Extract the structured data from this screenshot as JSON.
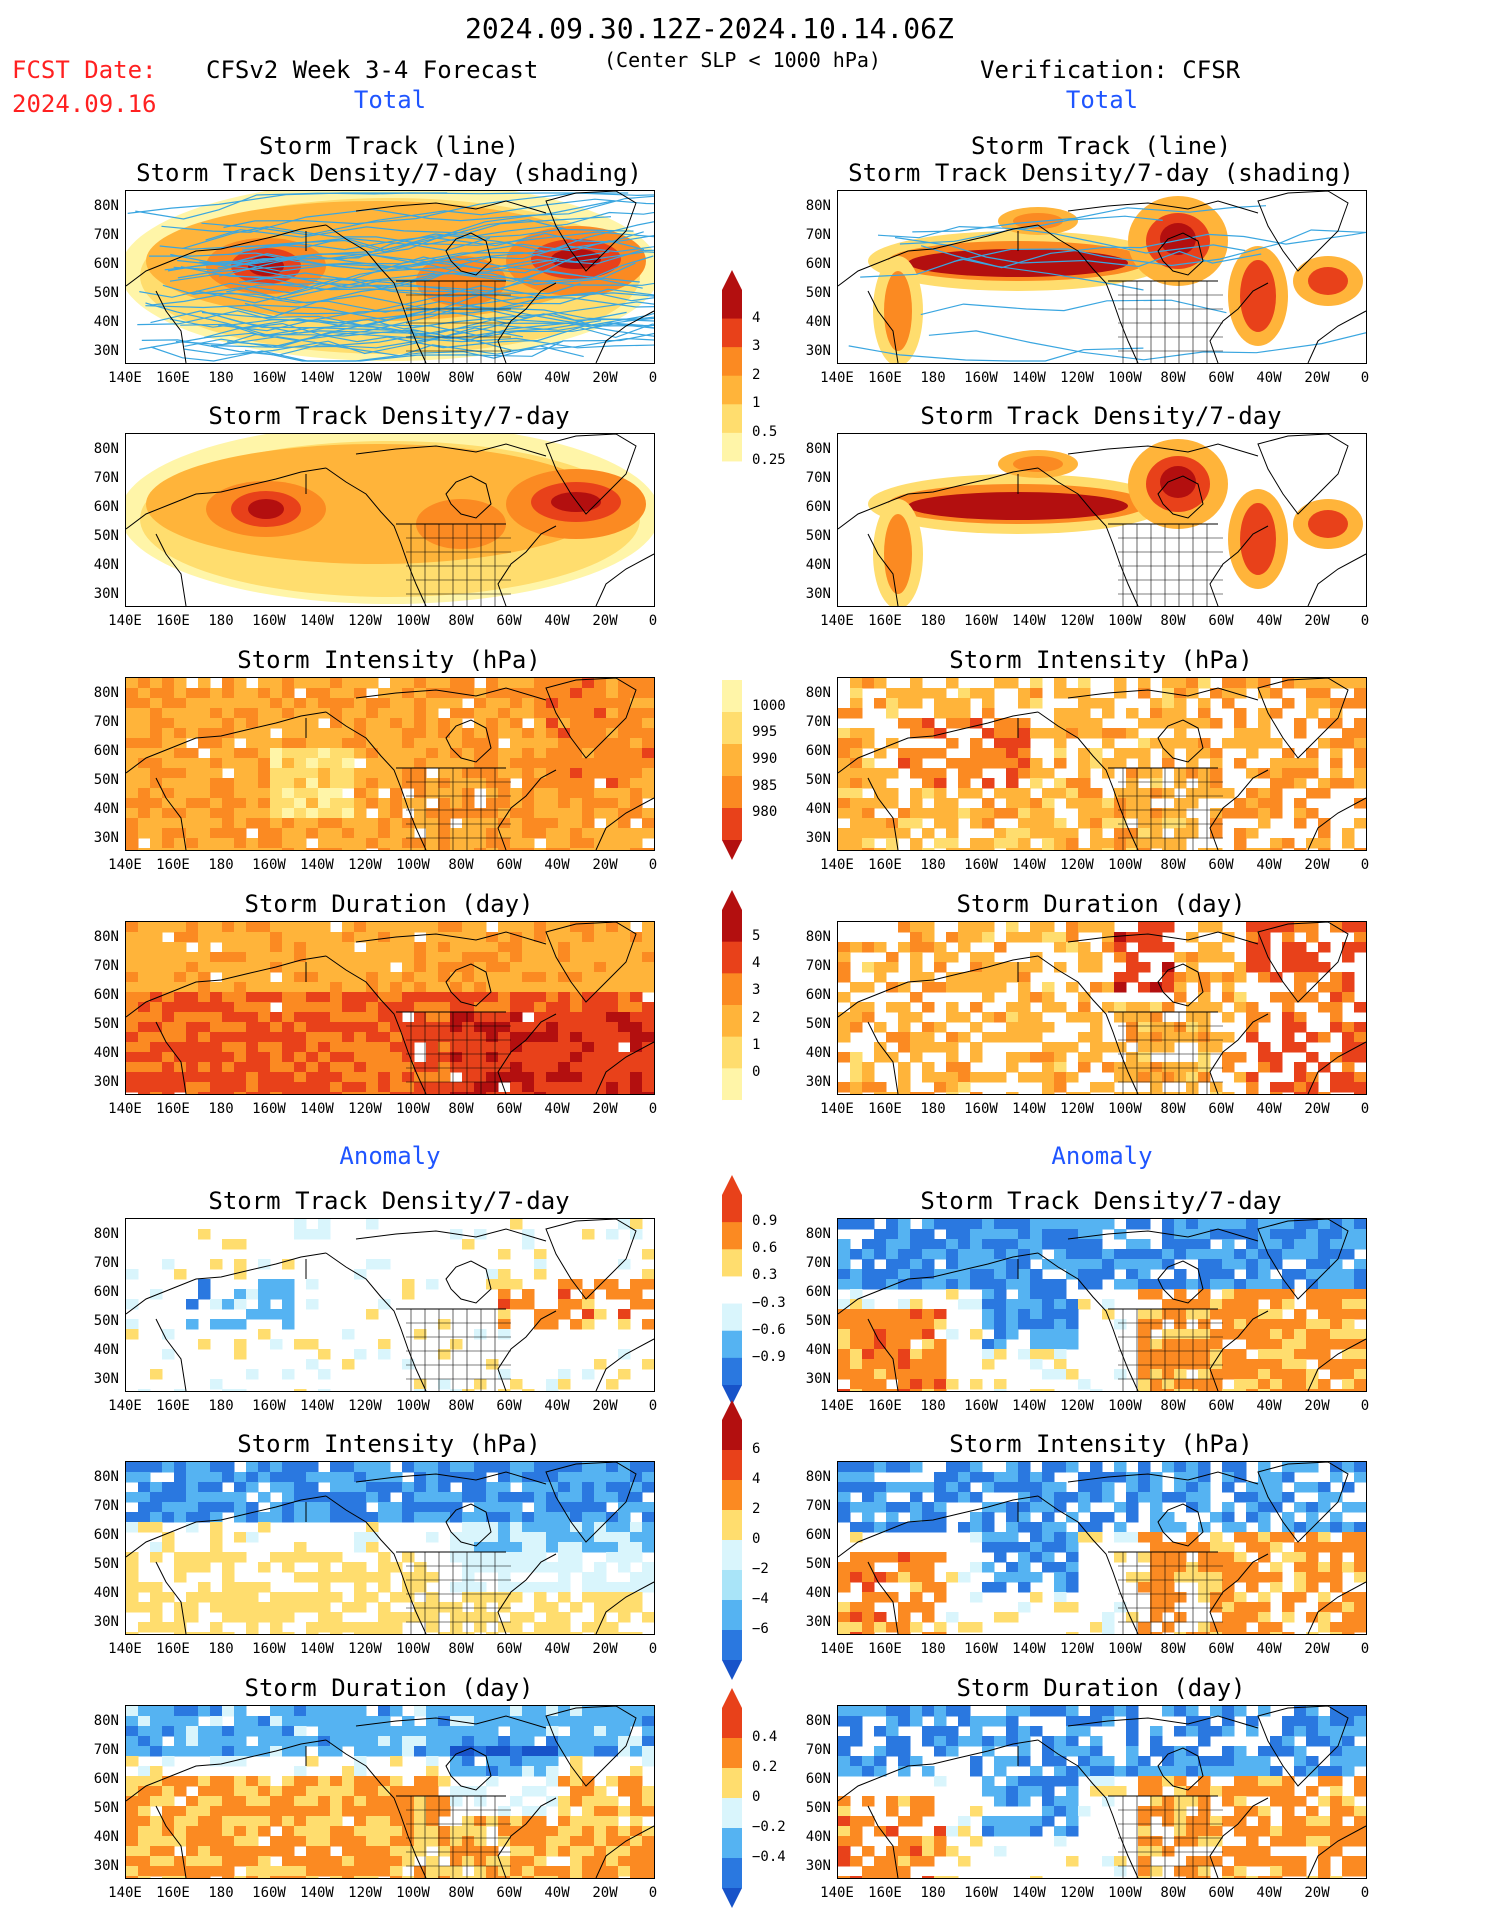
{
  "header": {
    "period": "2024.09.30.12Z-2024.10.14.06Z",
    "fcst_label": "FCST Date:",
    "fcst_date": "2024.09.16",
    "forecast_label": "CFSv2 Week 3-4 Forecast",
    "criterion": "(Center SLP < 1000 hPa)",
    "verification_label": "Verification: CFSR"
  },
  "sections": {
    "total_left": "Total",
    "total_right": "Total",
    "anomaly_left": "Anomaly",
    "anomaly_right": "Anomaly"
  },
  "panel_titles": {
    "track_line": "Storm Track (line)",
    "track_density_shading": "Storm Track Density/7-day (shading)",
    "track_density": "Storm Track Density/7-day",
    "intensity": "Storm Intensity (hPa)",
    "duration": "Storm Duration (day)"
  },
  "axes": {
    "lat_labels": [
      "80N",
      "70N",
      "60N",
      "50N",
      "40N",
      "30N"
    ],
    "lon_labels": [
      "140E",
      "160E",
      "180",
      "160W",
      "140W",
      "120W",
      "100W",
      "80W",
      "60W",
      "40W",
      "20W",
      "0"
    ]
  },
  "colorbars": {
    "density_total": [
      "4",
      "3",
      "2",
      "1",
      "0.5",
      "0.25"
    ],
    "intensity_total": [
      "1000",
      "995",
      "990",
      "985",
      "980"
    ],
    "duration_total": [
      "5",
      "4",
      "3",
      "2",
      "1",
      "0"
    ],
    "density_anomaly": [
      "0.9",
      "0.6",
      "0.3",
      "−0.3",
      "−0.6",
      "−0.9"
    ],
    "intensity_anomaly": [
      "6",
      "4",
      "2",
      "0",
      "−2",
      "−4",
      "−6"
    ],
    "duration_anomaly": [
      "0.4",
      "0.2",
      "0",
      "−0.2",
      "−0.4"
    ]
  },
  "colors": {
    "warm": [
      "#fff5a8",
      "#ffdd6e",
      "#ffb43a",
      "#fb8a22",
      "#e8411a",
      "#b30f0f"
    ],
    "cool": [
      "#d9f5fc",
      "#a9e4f8",
      "#55b3f2",
      "#2a78e0",
      "#1753c9"
    ],
    "track_line": "#3aa6e0",
    "label_red": "#ff2020",
    "label_blue": "#1f55ff"
  }
}
